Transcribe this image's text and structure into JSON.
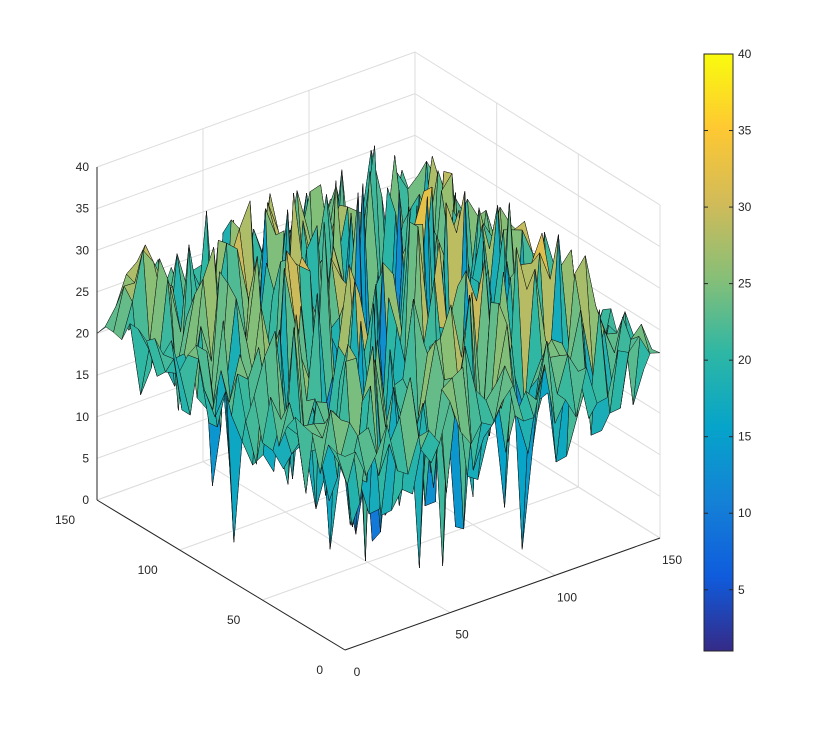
{
  "chart_data": {
    "type": "surface",
    "title": "",
    "xlabel": "",
    "ylabel": "",
    "zlabel": "",
    "xlim": [
      0,
      150
    ],
    "ylim": [
      0,
      150
    ],
    "zlim": [
      0,
      40
    ],
    "x_ticks": [
      "0",
      "50",
      "100",
      "150"
    ],
    "y_ticks": [
      "0",
      "50",
      "100",
      "150"
    ],
    "z_ticks": [
      "0",
      "5",
      "10",
      "15",
      "20",
      "25",
      "30",
      "35",
      "40"
    ],
    "grid": true,
    "view": "3-D default (azimuth -37.5, elevation 30)",
    "surface": {
      "description_values": "noisy surface: plateau near 20-25 at outer edges, heavy spikes up to ~40 and dips to ~0 over the central region",
      "edge_level": 22,
      "max": 40,
      "min": 0
    },
    "colorbar": {
      "colormap": "parula",
      "limits": [
        1,
        40
      ],
      "ticks": [
        "5",
        "10",
        "15",
        "20",
        "25",
        "30",
        "35",
        "40"
      ],
      "colors": [
        "#352a87",
        "#0f5cdd",
        "#1481d6",
        "#06a4ca",
        "#2eb7a4",
        "#87bf77",
        "#d1bb59",
        "#fec832",
        "#f9fb0e"
      ]
    }
  }
}
